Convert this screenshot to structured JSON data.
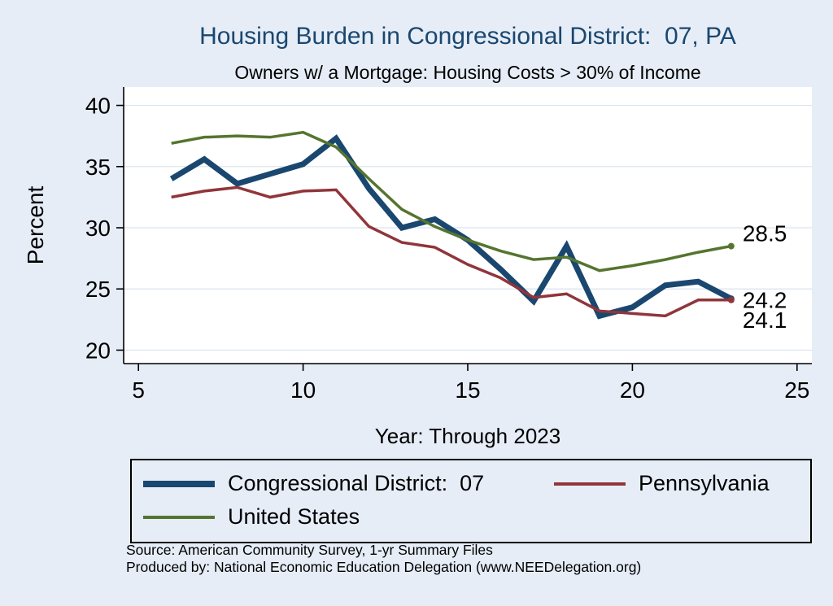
{
  "title": "Housing Burden in Congressional District:  07, PA",
  "subtitle": "Owners w/ a Mortgage: Housing Costs > 30% of Income",
  "source_line1": "Source: American Community Survey, 1-yr Summary Files",
  "source_line2": "Produced by: National Economic Education Delegation (www.NEEDelegation.org)",
  "colors": {
    "background": "#e6edf7",
    "title": "#1a476f",
    "grid": "#d9e3ee",
    "cd07": "#1a476f",
    "pennsylvania": "#90353b",
    "united_states": "#55752f"
  },
  "legend": {
    "items": [
      {
        "label": "Congressional District:  07",
        "color": "#1a476f",
        "thickness": "thick"
      },
      {
        "label": "Pennsylvania",
        "color": "#90353b",
        "thickness": "thin"
      },
      {
        "label": "United States",
        "color": "#55752f",
        "thickness": "thin"
      }
    ]
  },
  "chart_data": {
    "type": "line",
    "title": "Housing Burden in Congressional District:  07, PA",
    "subtitle": "Owners w/ a Mortgage: Housing Costs > 30% of Income",
    "xlabel": "Year: Through 2023",
    "ylabel": "Percent",
    "x": [
      6,
      7,
      8,
      9,
      10,
      11,
      12,
      13,
      14,
      15,
      16,
      17,
      18,
      19,
      20,
      21,
      22,
      23
    ],
    "series": [
      {
        "name": "Congressional District:  07",
        "slug": "congressional-district-07",
        "color": "#1a476f",
        "width": 7,
        "values": [
          34.0,
          35.6,
          33.6,
          34.4,
          35.2,
          37.3,
          33.2,
          30.0,
          30.7,
          29.0,
          26.6,
          24.0,
          28.5,
          22.8,
          23.5,
          25.3,
          25.6,
          24.2
        ]
      },
      {
        "name": "Pennsylvania",
        "slug": "pennsylvania",
        "color": "#90353b",
        "width": 3.5,
        "values": [
          32.5,
          33.0,
          33.3,
          32.5,
          33.0,
          33.1,
          30.1,
          28.8,
          28.4,
          27.0,
          25.9,
          24.3,
          24.6,
          23.2,
          23.0,
          22.8,
          24.1,
          24.1
        ]
      },
      {
        "name": "United States",
        "slug": "united-states",
        "color": "#55752f",
        "width": 3.5,
        "values": [
          36.9,
          37.4,
          37.5,
          37.4,
          37.8,
          36.6,
          34.0,
          31.5,
          30.1,
          29.0,
          28.1,
          27.4,
          27.6,
          26.5,
          26.9,
          27.4,
          28.0,
          28.5
        ]
      }
    ],
    "xticks": [
      5,
      10,
      15,
      20,
      25
    ],
    "yticks": [
      20,
      25,
      30,
      35,
      40
    ],
    "xlim": [
      4.55,
      25.45
    ],
    "ylim": [
      18.9,
      41.5
    ],
    "grid": "horizontal",
    "legend_position": "bottom",
    "end_labels": [
      {
        "text": "28.5",
        "series": "United States",
        "dy": -6
      },
      {
        "text": "24.2",
        "series": "Congressional District:  07",
        "dy": 11
      },
      {
        "text": "24.1",
        "series": "Pennsylvania",
        "dy": 34
      }
    ]
  }
}
